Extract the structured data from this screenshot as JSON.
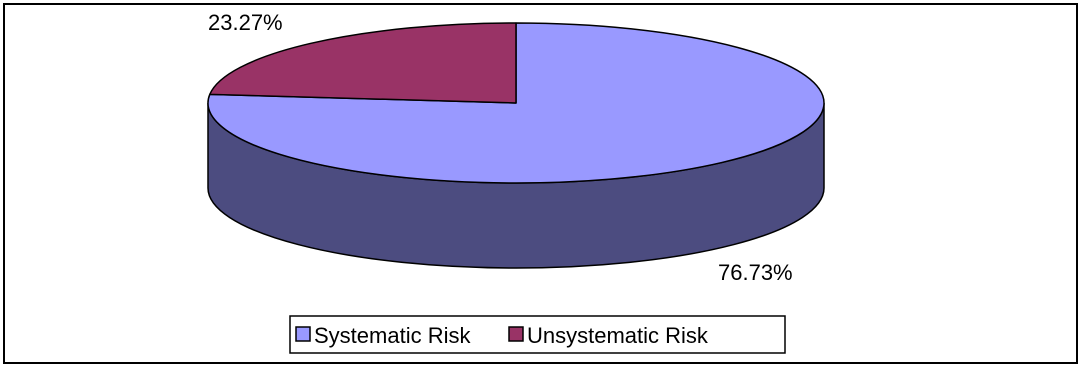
{
  "chart_data": {
    "type": "pie",
    "title": "",
    "slices": [
      {
        "label": "Systematic Risk",
        "value": 76.73,
        "data_label": "76.73%",
        "color": "#9999FF",
        "side_color": "#4C4C80"
      },
      {
        "label": "Unsystematic Risk",
        "value": 23.27,
        "data_label": "23.27%",
        "color": "#993366",
        "side_color": "#4C1A33"
      }
    ],
    "style": "3d",
    "legend": {
      "position": "bottom"
    }
  }
}
